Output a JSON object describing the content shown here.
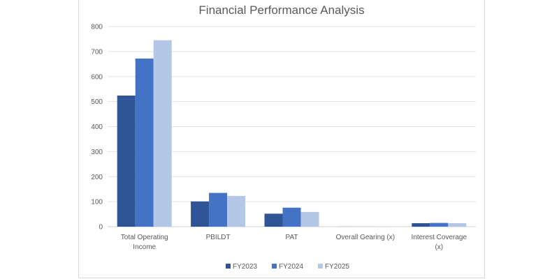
{
  "chart_data": {
    "type": "bar",
    "title": "Financial Performance Analysis",
    "xlabel": "",
    "ylabel": "",
    "ylim": [
      0,
      800
    ],
    "yticks": [
      0,
      100,
      200,
      300,
      400,
      500,
      600,
      700,
      800
    ],
    "grid": true,
    "legend_position": "bottom",
    "categories": [
      [
        "Total Operating",
        "Income"
      ],
      [
        "PBILDT"
      ],
      [
        "PAT"
      ],
      [
        "Overall Gearing (x)"
      ],
      [
        "Interest Coverage",
        "(x)"
      ]
    ],
    "series": [
      {
        "name": "FY2023",
        "color": "#2f5597",
        "values": [
          524,
          101,
          52,
          0.3,
          14
        ]
      },
      {
        "name": "FY2024",
        "color": "#4472c4",
        "values": [
          672,
          135,
          76,
          0.3,
          15
        ]
      },
      {
        "name": "FY2025",
        "color": "#b4c7e7",
        "values": [
          745,
          123,
          59,
          0.3,
          14
        ]
      }
    ]
  }
}
